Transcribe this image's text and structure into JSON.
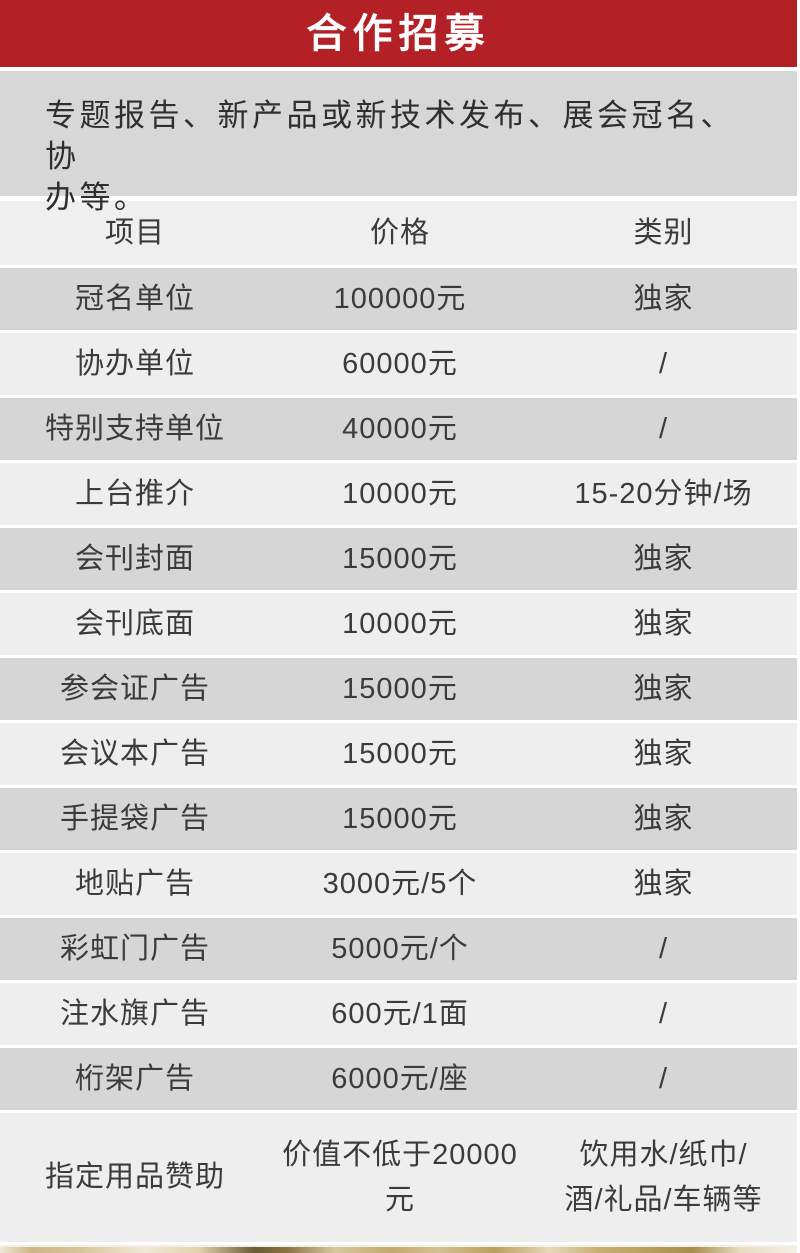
{
  "banner": {
    "title": "合作招募",
    "bg_color": "#b32025",
    "text_color": "#ffffff"
  },
  "intro": {
    "text": "专题报告、新产品或新技术发布、展会冠名、协\n办等。",
    "bg_color": "#d7d7d7"
  },
  "table": {
    "header": {
      "item": "项目",
      "price": "价格",
      "category": "类别"
    },
    "rows": [
      {
        "item": "冠名单位",
        "price": "100000元",
        "category": "独家"
      },
      {
        "item": "协办单位",
        "price": "60000元",
        "category": "/"
      },
      {
        "item": "特别支持单位",
        "price": "40000元",
        "category": "/"
      },
      {
        "item": "上台推介",
        "price": "10000元",
        "category": "15-20分钟/场"
      },
      {
        "item": "会刊封面",
        "price": "15000元",
        "category": "独家"
      },
      {
        "item": "会刊底面",
        "price": "10000元",
        "category": "独家"
      },
      {
        "item": "参会证广告",
        "price": "15000元",
        "category": "独家"
      },
      {
        "item": "会议本广告",
        "price": "15000元",
        "category": "独家"
      },
      {
        "item": "手提袋广告",
        "price": "15000元",
        "category": "独家"
      },
      {
        "item": "地贴广告",
        "price": "3000元/5个",
        "category": "独家"
      },
      {
        "item": "彩虹门广告",
        "price": "5000元/个",
        "category": "/"
      },
      {
        "item": "注水旗广告",
        "price": "600元/1面",
        "category": "/"
      },
      {
        "item": "桁架广告",
        "price": "6000元/座",
        "category": "/"
      },
      {
        "item": "指定用品赞助",
        "price": "价值不低于20000元",
        "category": "饮用水/纸巾/\n酒/礼品/车辆等",
        "tall": true
      }
    ],
    "colors": {
      "row_light": "#eeeeee",
      "row_dark": "#d6d6d6",
      "gap": "#ffffff",
      "text": "#3b3b3b"
    }
  }
}
